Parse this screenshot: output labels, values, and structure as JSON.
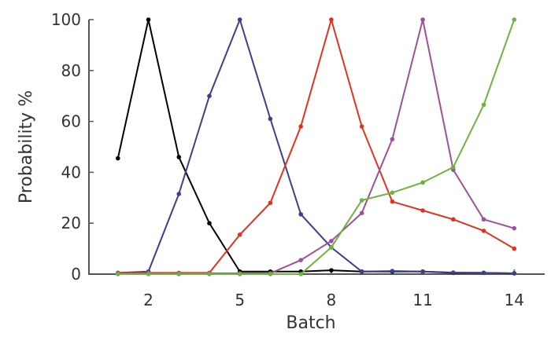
{
  "chart_data": {
    "type": "line",
    "xlabel": "Batch",
    "ylabel": "Probability %",
    "xlim": [
      0.05,
      15
    ],
    "ylim": [
      0,
      100
    ],
    "xticks": [
      2,
      5,
      8,
      11,
      14
    ],
    "yticks": [
      0,
      20,
      40,
      60,
      80,
      100
    ],
    "grid": false,
    "x": [
      1,
      2,
      3,
      4,
      5,
      6,
      7,
      8,
      9,
      10,
      11,
      12,
      13,
      14
    ],
    "series": [
      {
        "color": "#000000",
        "values": [
          45.5,
          100,
          46,
          20,
          1,
          1,
          1,
          1.5,
          1,
          1,
          1,
          0.5,
          0.5,
          0.3
        ]
      },
      {
        "color": "#3b3f8c",
        "values": [
          0.5,
          1,
          31.5,
          70,
          100,
          61,
          23.5,
          10.5,
          1,
          1.2,
          1,
          0.6,
          0.5,
          0.3
        ]
      },
      {
        "color": "#e2321f",
        "values": [
          0.5,
          0.5,
          0.5,
          0.5,
          15.5,
          28,
          58,
          100,
          58,
          28.5,
          25,
          21.5,
          17,
          10
        ]
      },
      {
        "color": "#a0509a",
        "values": [
          0.3,
          0.3,
          0.3,
          0.3,
          0.3,
          0.3,
          5.5,
          13,
          24,
          53,
          100,
          41,
          21.5,
          18
        ]
      },
      {
        "color": "#6db33f",
        "values": [
          0,
          0,
          0,
          0,
          0,
          0,
          0,
          10.5,
          29,
          32,
          36,
          42,
          66.5,
          100
        ]
      }
    ]
  }
}
